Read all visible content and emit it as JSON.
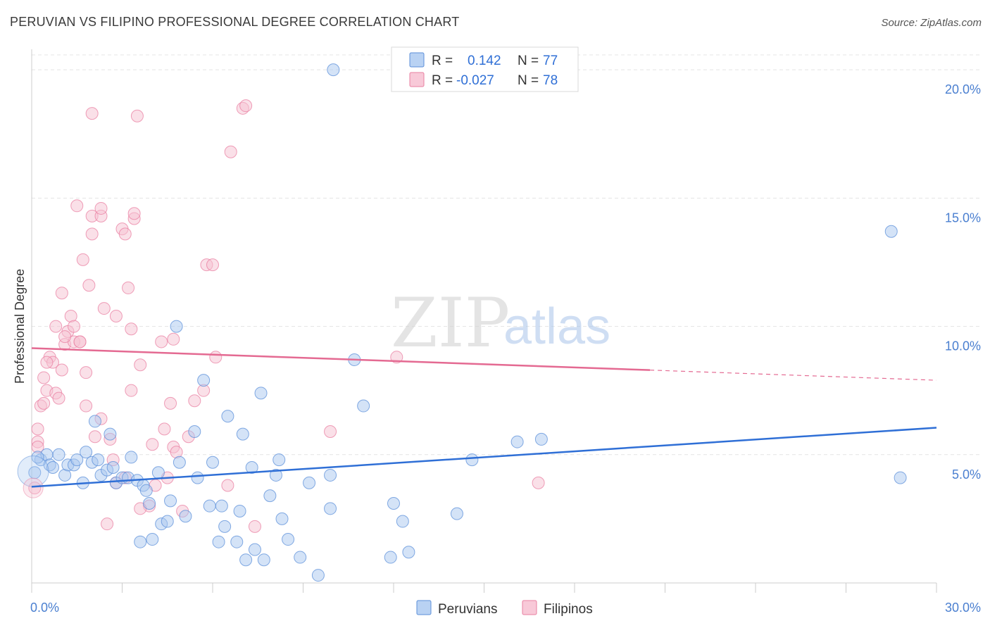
{
  "title": "PERUVIAN VS FILIPINO PROFESSIONAL DEGREE CORRELATION CHART",
  "source": "Source: ZipAtlas.com",
  "watermark": {
    "zip": "ZIP",
    "atlas": "atlas"
  },
  "colors": {
    "blue": "#5b8fd9",
    "blue_fill": "#a9c8f0",
    "blue_line": "#2f6fd6",
    "pink": "#e97fa1",
    "pink_fill": "#f6c1d2",
    "pink_line": "#e46a92",
    "tick": "#4a7fd0",
    "grid": "#e4e4e4"
  },
  "legend": {
    "rows": [
      {
        "r_label": "R =",
        "r_value": "0.142",
        "n_label": "N =",
        "n_value": "77"
      },
      {
        "r_label": "R =",
        "r_value": "-0.027",
        "n_label": "N =",
        "n_value": "78"
      }
    ]
  },
  "bottom_legend": [
    "Peruvians",
    "Filipinos"
  ],
  "chart_data": {
    "type": "scatter",
    "xlabel": "",
    "ylabel": "Professional Degree",
    "xlim": [
      0,
      30
    ],
    "ylim": [
      0,
      20.8
    ],
    "x_tick_labels": [
      {
        "value": 0,
        "label": "0.0%"
      },
      {
        "value": 30,
        "label": "30.0%"
      }
    ],
    "y_tick_labels": [
      {
        "value": 5,
        "label": "5.0%"
      },
      {
        "value": 10,
        "label": "10.0%"
      },
      {
        "value": 15,
        "label": "15.0%"
      },
      {
        "value": 20,
        "label": "20.0%"
      }
    ],
    "grid": true,
    "legend_position": "top-center",
    "series": [
      {
        "name": "Peruvians",
        "trend": {
          "x0": 0,
          "y0": 3.75,
          "x1": 30,
          "y1": 6.05,
          "solid_until": 30
        },
        "points": [
          [
            0.1,
            4.3
          ],
          [
            0.3,
            4.8
          ],
          [
            0.5,
            5.0
          ],
          [
            0.6,
            4.6
          ],
          [
            0.7,
            4.5
          ],
          [
            0.9,
            5.0
          ],
          [
            1.1,
            4.2
          ],
          [
            1.2,
            4.6
          ],
          [
            1.4,
            4.6
          ],
          [
            1.5,
            4.8
          ],
          [
            1.7,
            3.9
          ],
          [
            1.8,
            5.1
          ],
          [
            2.0,
            4.7
          ],
          [
            2.1,
            6.3
          ],
          [
            2.2,
            4.8
          ],
          [
            2.3,
            4.2
          ],
          [
            2.5,
            4.4
          ],
          [
            2.6,
            5.8
          ],
          [
            2.7,
            4.5
          ],
          [
            2.8,
            3.9
          ],
          [
            3.0,
            4.1
          ],
          [
            3.2,
            4.1
          ],
          [
            3.3,
            4.9
          ],
          [
            3.5,
            4.0
          ],
          [
            3.6,
            1.6
          ],
          [
            3.7,
            3.8
          ],
          [
            3.8,
            3.6
          ],
          [
            3.9,
            3.1
          ],
          [
            4.0,
            1.7
          ],
          [
            4.2,
            4.3
          ],
          [
            4.3,
            2.3
          ],
          [
            4.5,
            2.4
          ],
          [
            4.6,
            3.2
          ],
          [
            4.8,
            10.0
          ],
          [
            4.9,
            4.7
          ],
          [
            5.1,
            2.6
          ],
          [
            5.4,
            5.9
          ],
          [
            5.5,
            4.1
          ],
          [
            5.7,
            7.9
          ],
          [
            5.9,
            3.0
          ],
          [
            6.0,
            4.7
          ],
          [
            6.2,
            1.6
          ],
          [
            6.3,
            3.0
          ],
          [
            6.4,
            2.2
          ],
          [
            6.5,
            6.5
          ],
          [
            6.8,
            1.6
          ],
          [
            6.9,
            2.8
          ],
          [
            7.0,
            5.8
          ],
          [
            7.1,
            0.9
          ],
          [
            7.3,
            4.5
          ],
          [
            7.4,
            1.3
          ],
          [
            7.6,
            7.4
          ],
          [
            7.7,
            0.9
          ],
          [
            7.9,
            3.4
          ],
          [
            8.1,
            4.2
          ],
          [
            8.2,
            4.8
          ],
          [
            8.3,
            2.5
          ],
          [
            8.5,
            1.7
          ],
          [
            8.9,
            1.0
          ],
          [
            9.2,
            3.9
          ],
          [
            9.5,
            0.3
          ],
          [
            9.9,
            2.9
          ],
          [
            9.9,
            4.2
          ],
          [
            10.0,
            20.0
          ],
          [
            10.7,
            8.7
          ],
          [
            11.0,
            6.9
          ],
          [
            11.9,
            1.0
          ],
          [
            12.0,
            3.1
          ],
          [
            12.3,
            2.4
          ],
          [
            12.5,
            1.2
          ],
          [
            14.1,
            2.7
          ],
          [
            14.6,
            4.8
          ],
          [
            16.1,
            5.5
          ],
          [
            16.9,
            5.6
          ],
          [
            28.5,
            13.7
          ],
          [
            28.8,
            4.1
          ],
          [
            0.2,
            4.9
          ]
        ]
      },
      {
        "name": "Filipinos",
        "trend": {
          "x0": 0,
          "y0": 9.15,
          "x1": 30,
          "y1": 7.9,
          "solid_until": 20.5
        },
        "points": [
          [
            0.1,
            3.7
          ],
          [
            0.2,
            5.5
          ],
          [
            0.2,
            6.0
          ],
          [
            0.3,
            6.9
          ],
          [
            0.4,
            7.0
          ],
          [
            0.4,
            8.0
          ],
          [
            0.5,
            7.5
          ],
          [
            0.6,
            8.8
          ],
          [
            0.7,
            8.6
          ],
          [
            0.8,
            10.0
          ],
          [
            0.8,
            7.4
          ],
          [
            0.9,
            7.2
          ],
          [
            1.0,
            11.3
          ],
          [
            1.0,
            8.3
          ],
          [
            1.1,
            9.3
          ],
          [
            1.2,
            9.8
          ],
          [
            1.3,
            10.4
          ],
          [
            1.4,
            9.4
          ],
          [
            1.4,
            10.0
          ],
          [
            1.5,
            14.7
          ],
          [
            1.6,
            9.4
          ],
          [
            1.7,
            12.6
          ],
          [
            1.8,
            6.9
          ],
          [
            1.8,
            8.2
          ],
          [
            1.9,
            11.6
          ],
          [
            2.0,
            13.6
          ],
          [
            2.0,
            14.3
          ],
          [
            2.0,
            18.3
          ],
          [
            2.1,
            5.7
          ],
          [
            2.3,
            14.3
          ],
          [
            2.3,
            14.6
          ],
          [
            2.3,
            6.4
          ],
          [
            2.4,
            10.7
          ],
          [
            2.5,
            2.3
          ],
          [
            2.6,
            5.6
          ],
          [
            2.7,
            4.8
          ],
          [
            2.8,
            3.9
          ],
          [
            2.8,
            10.4
          ],
          [
            3.0,
            13.8
          ],
          [
            3.1,
            13.6
          ],
          [
            3.1,
            4.1
          ],
          [
            3.2,
            11.5
          ],
          [
            3.3,
            7.5
          ],
          [
            3.3,
            9.9
          ],
          [
            3.4,
            14.2
          ],
          [
            3.4,
            14.4
          ],
          [
            3.5,
            18.2
          ],
          [
            3.6,
            8.5
          ],
          [
            3.9,
            3.0
          ],
          [
            4.0,
            5.4
          ],
          [
            4.1,
            3.8
          ],
          [
            4.3,
            9.4
          ],
          [
            4.5,
            4.1
          ],
          [
            4.6,
            7.0
          ],
          [
            4.7,
            9.5
          ],
          [
            4.7,
            5.3
          ],
          [
            4.8,
            5.1
          ],
          [
            5.0,
            2.8
          ],
          [
            5.2,
            5.7
          ],
          [
            5.4,
            7.1
          ],
          [
            5.7,
            7.5
          ],
          [
            5.8,
            12.4
          ],
          [
            6.0,
            12.4
          ],
          [
            6.1,
            8.8
          ],
          [
            6.5,
            3.8
          ],
          [
            6.6,
            16.8
          ],
          [
            7.0,
            18.5
          ],
          [
            7.1,
            18.6
          ],
          [
            7.4,
            2.2
          ],
          [
            9.9,
            5.9
          ],
          [
            12.1,
            8.8
          ],
          [
            16.8,
            3.9
          ],
          [
            0.2,
            5.3
          ],
          [
            0.5,
            8.6
          ],
          [
            1.1,
            9.6
          ],
          [
            1.6,
            9.4
          ],
          [
            3.6,
            2.9
          ],
          [
            4.4,
            6.0
          ]
        ]
      }
    ]
  }
}
